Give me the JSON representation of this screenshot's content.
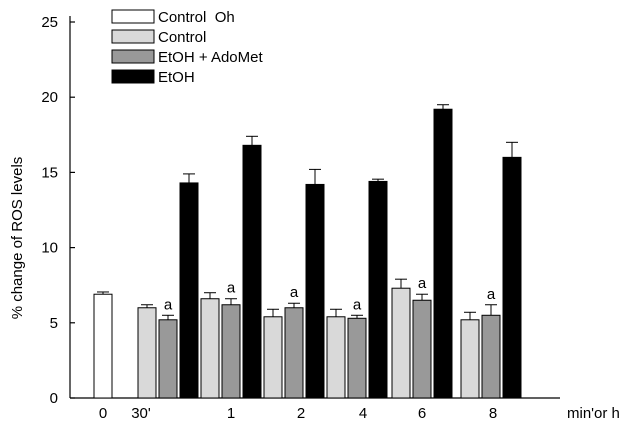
{
  "chart_data": {
    "type": "bar",
    "title": "",
    "xlabel": "min'or h",
    "ylabel": "% change of ROS levels",
    "ylim": [
      0,
      25
    ],
    "yticks": [
      0,
      5,
      10,
      15,
      20,
      25
    ],
    "grid": false,
    "legend_position": "top-left",
    "categories": [
      "0",
      "30'",
      "1",
      "2",
      "4",
      "6",
      "8"
    ],
    "series": [
      {
        "name": "Control  Oh",
        "color": "#ffffff",
        "values": [
          6.9,
          null,
          null,
          null,
          null,
          null,
          null
        ],
        "errors": [
          0.15,
          null,
          null,
          null,
          null,
          null,
          null
        ]
      },
      {
        "name": "Control",
        "color": "#d9d9d9",
        "values": [
          null,
          6.0,
          6.6,
          5.4,
          5.4,
          7.3,
          5.2
        ],
        "errors": [
          null,
          0.2,
          0.4,
          0.5,
          0.5,
          0.6,
          0.5
        ]
      },
      {
        "name": "EtOH + AdoMet",
        "color": "#999999",
        "values": [
          null,
          5.2,
          6.2,
          6.0,
          5.3,
          6.5,
          5.5
        ],
        "errors": [
          null,
          0.3,
          0.4,
          0.3,
          0.2,
          0.4,
          0.7
        ]
      },
      {
        "name": "EtOH",
        "color": "#000000",
        "values": [
          null,
          14.3,
          16.8,
          14.2,
          14.4,
          19.2,
          16.0
        ],
        "errors": [
          null,
          0.6,
          0.6,
          1.0,
          0.15,
          0.3,
          1.0
        ]
      }
    ],
    "annotations": [
      {
        "text": "a",
        "category": "30'",
        "series": "EtOH + AdoMet"
      },
      {
        "text": "a",
        "category": "1",
        "series": "EtOH + AdoMet"
      },
      {
        "text": "a",
        "category": "2",
        "series": "EtOH + AdoMet"
      },
      {
        "text": "a",
        "category": "4",
        "series": "EtOH + AdoMet"
      },
      {
        "text": "a",
        "category": "6",
        "series": "EtOH + AdoMet"
      },
      {
        "text": "a",
        "category": "8",
        "series": "EtOH + AdoMet"
      }
    ]
  }
}
